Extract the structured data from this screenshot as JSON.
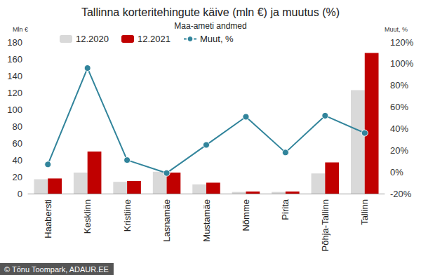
{
  "chart_data": {
    "type": "bar",
    "title": "Tallinna korteritehingute käive (mln €) ja muutus (%)",
    "subtitle": "Maa-ameti andmed",
    "y_label": "Mln €",
    "y2_label": "Muut, %",
    "annotation": "© Tõnu Toompark, ADAUR.EE",
    "categories": [
      "Haabersti",
      "Kesklinn",
      "Kristiine",
      "Lasnamäe",
      "Mustamäe",
      "Nõmme",
      "Pirita",
      "Põhja-Tallinn",
      "Tallinn"
    ],
    "series": [
      {
        "name": "12.2020",
        "type": "bar",
        "color": "#d9d9d9",
        "values": [
          17,
          25,
          14,
          26,
          11,
          2,
          2,
          24,
          123
        ]
      },
      {
        "name": "12.2021",
        "type": "bar",
        "color": "#c00000",
        "values": [
          18,
          50,
          15,
          25,
          13,
          2.5,
          2.5,
          37,
          167
        ]
      },
      {
        "name": "Muut, %",
        "type": "line",
        "color": "#31849b",
        "marker": "circle",
        "axis": "y2",
        "values": [
          7,
          96,
          11,
          -1,
          25,
          51,
          18,
          52,
          36
        ]
      }
    ],
    "ylim": [
      0,
      180
    ],
    "yticks": [
      0,
      20,
      40,
      60,
      80,
      100,
      120,
      140,
      160,
      180
    ],
    "y2lim": [
      -20,
      120
    ],
    "y2ticks": [
      {
        "value": -20,
        "label": "-20%"
      },
      {
        "value": 0,
        "label": "0%"
      },
      {
        "value": 20,
        "label": "20%"
      },
      {
        "value": 40,
        "label": "40%"
      },
      {
        "value": 60,
        "label": "60%"
      },
      {
        "value": 80,
        "label": "80%"
      },
      {
        "value": 100,
        "label": "100%"
      },
      {
        "value": 120,
        "label": "120%"
      }
    ],
    "grid": false,
    "legend": "top"
  }
}
